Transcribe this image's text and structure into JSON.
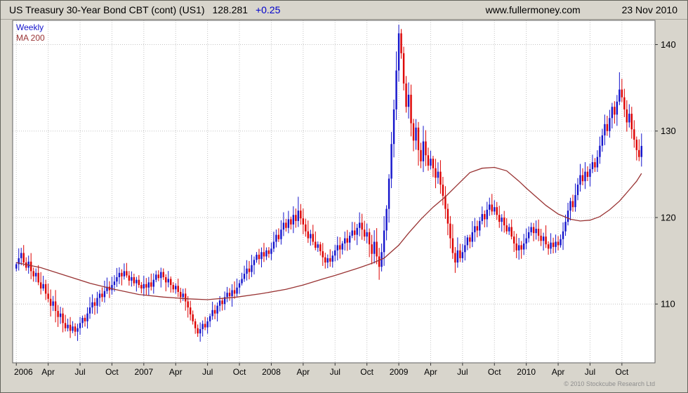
{
  "header": {
    "title": "US Treasury 30-Year  Bond CBT (cont) (US1)",
    "last_price": "128.281",
    "change": "+0.25",
    "website": "www.fullermoney.com",
    "date": "23 Nov 2010"
  },
  "legend": {
    "weekly": "Weekly",
    "ma": "MA 200"
  },
  "footer": {
    "copyright": "© 2010 Stockcube Research Ltd"
  },
  "colors": {
    "up": "#1414cc",
    "down": "#dd0000",
    "ma": "#993333",
    "grid": "#c4c4c4",
    "axis": "#333333",
    "border": "#606060",
    "text": "#000000",
    "change": "#0000cc",
    "plot_bg": "#ffffff",
    "outer_bg": "#d8d5cc"
  },
  "chart_data": {
    "type": "candlestick",
    "interval": "weekly",
    "title": "US Treasury 30-Year Bond CBT (cont) (US1)",
    "ylim": [
      103.2,
      142.8
    ],
    "yticks": [
      110,
      120,
      130,
      140
    ],
    "grid": true,
    "xticks": [
      {
        "label": "2006",
        "week": 0
      },
      {
        "label": "Apr",
        "week": 13
      },
      {
        "label": "Jul",
        "week": 26
      },
      {
        "label": "Oct",
        "week": 39
      },
      {
        "label": "2007",
        "week": 52
      },
      {
        "label": "Apr",
        "week": 65
      },
      {
        "label": "Jul",
        "week": 78
      },
      {
        "label": "Oct",
        "week": 91
      },
      {
        "label": "2008",
        "week": 104
      },
      {
        "label": "Apr",
        "week": 117
      },
      {
        "label": "Jul",
        "week": 130
      },
      {
        "label": "Oct",
        "week": 143
      },
      {
        "label": "2009",
        "week": 156
      },
      {
        "label": "Apr",
        "week": 169
      },
      {
        "label": "Jul",
        "week": 182
      },
      {
        "label": "Oct",
        "week": 195
      },
      {
        "label": "2010",
        "week": 208
      },
      {
        "label": "Apr",
        "week": 221
      },
      {
        "label": "Jul",
        "week": 234
      },
      {
        "label": "Oct",
        "week": 247
      }
    ],
    "closes": [
      114.6,
      115.3,
      115.9,
      114.8,
      114.2,
      114.9,
      113.8,
      113.2,
      113.6,
      112.5,
      111.8,
      112.3,
      111.2,
      110.6,
      109.8,
      110.3,
      109.2,
      108.5,
      108.9,
      107.8,
      107.2,
      107.6,
      106.9,
      107.4,
      106.8,
      107.2,
      107.8,
      108.4,
      108.0,
      108.9,
      109.6,
      110.2,
      109.8,
      110.7,
      111.2,
      110.8,
      111.5,
      112.0,
      111.6,
      112.2,
      112.6,
      113.1,
      113.6,
      113.2,
      113.8,
      113.3,
      112.7,
      113.1,
      112.4,
      112.8,
      112.2,
      111.8,
      112.3,
      111.9,
      112.5,
      112.0,
      112.8,
      113.4,
      113.0,
      113.7,
      113.1,
      112.5,
      112.9,
      112.2,
      111.7,
      112.1,
      111.4,
      110.8,
      111.2,
      110.3,
      109.6,
      108.8,
      108.0,
      107.2,
      106.6,
      107.1,
      107.7,
      107.3,
      108.0,
      108.6,
      109.3,
      108.9,
      109.8,
      110.4,
      110.0,
      110.8,
      111.3,
      110.9,
      111.6,
      111.2,
      111.9,
      112.4,
      112.9,
      113.5,
      114.1,
      113.7,
      114.5,
      115.1,
      115.7,
      115.2,
      116.0,
      115.5,
      116.2,
      115.8,
      116.4,
      117.2,
      118.0,
      117.5,
      118.6,
      119.4,
      118.8,
      119.8,
      119.2,
      120.3,
      119.6,
      120.8,
      119.9,
      119.2,
      118.4,
      117.6,
      118.1,
      117.2,
      116.5,
      116.9,
      116.1,
      115.4,
      114.8,
      115.3,
      114.9,
      115.6,
      116.2,
      116.8,
      116.3,
      117.0,
      117.6,
      117.1,
      117.9,
      118.5,
      118.0,
      118.8,
      119.4,
      118.6,
      117.8,
      118.3,
      116.9,
      115.8,
      117.2,
      115.5,
      114.3,
      116.0,
      118.5,
      121.0,
      124.5,
      128.5,
      132.5,
      137.0,
      141.3,
      139.0,
      135.5,
      132.8,
      134.2,
      130.9,
      128.9,
      130.4,
      127.8,
      126.5,
      128.8,
      127.2,
      126.0,
      126.8,
      125.7,
      124.6,
      125.3,
      123.8,
      122.5,
      121.0,
      119.3,
      117.6,
      115.9,
      114.8,
      116.2,
      115.3,
      116.0,
      116.8,
      117.7,
      117.2,
      118.3,
      119.0,
      118.5,
      119.6,
      120.4,
      119.8,
      120.9,
      121.5,
      120.7,
      121.2,
      120.3,
      119.5,
      120.0,
      119.1,
      118.4,
      118.9,
      117.8,
      117.0,
      116.2,
      116.8,
      116.3,
      117.0,
      117.6,
      118.3,
      118.9,
      118.2,
      118.7,
      117.9,
      117.3,
      117.8,
      116.9,
      116.4,
      117.1,
      116.6,
      117.2,
      116.8,
      117.5,
      118.4,
      119.5,
      120.8,
      121.9,
      121.2,
      122.6,
      123.8,
      124.9,
      124.2,
      125.3,
      124.7,
      125.6,
      126.4,
      125.8,
      127.0,
      128.3,
      129.5,
      130.8,
      130.0,
      131.5,
      132.8,
      131.9,
      133.4,
      134.8,
      133.9,
      132.5,
      131.0,
      132.0,
      130.2,
      129.0,
      127.8,
      127.0,
      128.281
    ],
    "wick_overrides": {
      "2": {
        "h": 116.5
      },
      "24": {
        "l": 106.3
      },
      "59": {
        "h": 114.2
      },
      "74": {
        "l": 106.2
      },
      "113": {
        "h": 121.3
      },
      "115": {
        "h": 122.4
      },
      "126": {
        "l": 114.1
      },
      "140": {
        "h": 120.6
      },
      "148": {
        "l": 112.8
      },
      "155": {
        "h": 139.2
      },
      "156": {
        "h": 142.3
      },
      "157": {
        "h": 141.8
      },
      "166": {
        "h": 130.6
      },
      "179": {
        "l": 113.6
      },
      "193": {
        "h": 122.3
      },
      "204": {
        "l": 115.3
      },
      "217": {
        "l": 115.7
      },
      "230": {
        "h": 126.2
      },
      "246": {
        "h": 136.8
      },
      "253": {
        "l": 126.6
      }
    },
    "ma200": [
      [
        0,
        114.8
      ],
      [
        10,
        114.2
      ],
      [
        20,
        113.3
      ],
      [
        30,
        112.4
      ],
      [
        40,
        111.7
      ],
      [
        50,
        111.1
      ],
      [
        60,
        110.8
      ],
      [
        70,
        110.6
      ],
      [
        78,
        110.5
      ],
      [
        90,
        110.8
      ],
      [
        100,
        111.2
      ],
      [
        110,
        111.7
      ],
      [
        117,
        112.2
      ],
      [
        125,
        112.9
      ],
      [
        130,
        113.3
      ],
      [
        140,
        114.2
      ],
      [
        145,
        114.7
      ],
      [
        150,
        115.3
      ],
      [
        156,
        116.8
      ],
      [
        160,
        118.2
      ],
      [
        165,
        119.8
      ],
      [
        170,
        121.2
      ],
      [
        175,
        122.4
      ],
      [
        180,
        123.8
      ],
      [
        185,
        125.2
      ],
      [
        190,
        125.7
      ],
      [
        195,
        125.8
      ],
      [
        200,
        125.4
      ],
      [
        205,
        124.2
      ],
      [
        208,
        123.4
      ],
      [
        212,
        122.4
      ],
      [
        216,
        121.4
      ],
      [
        221,
        120.4
      ],
      [
        226,
        119.8
      ],
      [
        230,
        119.6
      ],
      [
        234,
        119.7
      ],
      [
        238,
        120.1
      ],
      [
        242,
        120.9
      ],
      [
        246,
        121.9
      ],
      [
        250,
        123.2
      ],
      [
        253,
        124.2
      ],
      [
        255,
        125.1
      ]
    ]
  }
}
